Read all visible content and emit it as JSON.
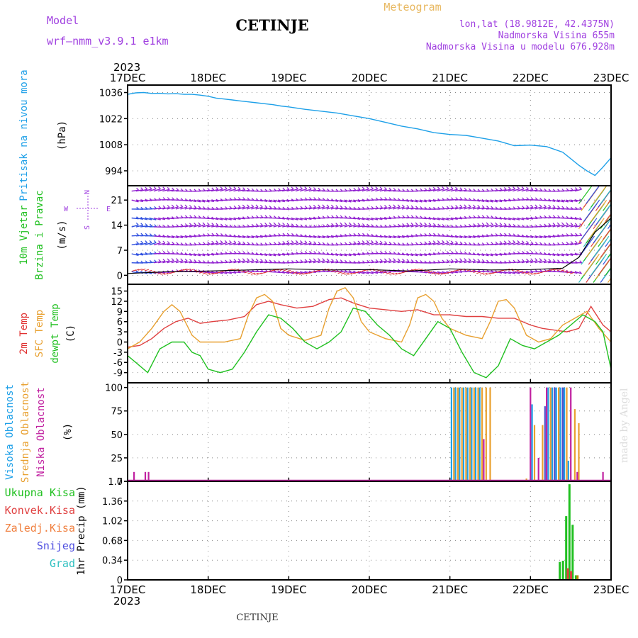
{
  "header": {
    "model_label": "Model",
    "model_name": "wrf—nmm_v3.9.1  e1km",
    "title": "CETINJE",
    "meteogram_label": "Meteogram",
    "coords": "lon,lat (18.9812E, 42.4375N)",
    "altitude": "Nadmorska Visina 655m",
    "model_altitude": "Nadmorska Visina u modelu 676.928m",
    "year_top": "2023",
    "year_bottom": "2023",
    "footer_station": "CETINJE",
    "credit": "made by Angel",
    "colors": {
      "model": "#a040e0",
      "meteogram": "#e8b860",
      "coords": "#a040e0"
    }
  },
  "time_axis": {
    "labels": [
      "17DEC",
      "18DEC",
      "19DEC",
      "20DEC",
      "21DEC",
      "22DEC",
      "23DEC"
    ]
  },
  "chart_data": [
    {
      "id": "pressure",
      "type": "line",
      "ylabel": [
        "Pritisak na nivou mora",
        "(hPa)"
      ],
      "ylabel_colors": [
        "#1ea0e8",
        "#000000"
      ],
      "yticks": [
        994,
        1008,
        1022,
        1036
      ],
      "ylim": [
        986,
        1040
      ],
      "series": [
        {
          "color": "#1ea0e8",
          "x": [
            0,
            0.1,
            0.2,
            0.3,
            0.4,
            0.5,
            0.6,
            0.7,
            0.8,
            0.9,
            1.0,
            1.1,
            1.2,
            1.3,
            1.4,
            1.5,
            1.6,
            1.7,
            1.8,
            1.9,
            2.0,
            2.2,
            2.4,
            2.6,
            2.8,
            3.0,
            3.2,
            3.4,
            3.6,
            3.8,
            4.0,
            4.2,
            4.4,
            4.6,
            4.8,
            5.0,
            5.2,
            5.4,
            5.6,
            5.7,
            5.8,
            5.9,
            6.0
          ],
          "y": [
            1035,
            1035.8,
            1036,
            1035.5,
            1035.6,
            1035.3,
            1035.4,
            1035,
            1035,
            1034.6,
            1034,
            1033,
            1032.5,
            1032,
            1031.5,
            1031,
            1030.5,
            1030,
            1029.5,
            1028.8,
            1028.3,
            1027,
            1026,
            1025,
            1023.5,
            1022,
            1020,
            1018,
            1016.5,
            1014.5,
            1013.5,
            1013,
            1011.5,
            1010,
            1007.5,
            1007.8,
            1007,
            1004,
            997,
            994,
            991.5,
            996,
            1001
          ]
        }
      ]
    },
    {
      "id": "wind",
      "type": "scatter",
      "ylabel": [
        "10m Vjetar",
        "Brzina i Pravac",
        "(m/s)"
      ],
      "ylabel_colors": [
        "#20c020",
        "#20c020",
        "#000000"
      ],
      "direction_legend": [
        "N",
        "W",
        "E",
        "S"
      ],
      "yticks": [
        0,
        7,
        14,
        21
      ],
      "ylim": [
        -2.5,
        25
      ],
      "barb_levels": [
        1,
        3.5,
        6,
        8.5,
        11,
        13.5,
        16,
        18.5,
        21,
        23.5
      ],
      "series": [
        {
          "name": "",
          "color": "#9020d0"
        },
        {
          "name": "",
          "color": "#3050e0"
        },
        {
          "name": "",
          "color": "#e03030"
        }
      ],
      "speed_line": {
        "color": "#000000",
        "x": [
          0,
          0.5,
          1.0,
          1.5,
          2.0,
          2.5,
          3.0,
          3.5,
          4.0,
          4.5,
          5.0,
          5.4,
          5.6,
          5.8,
          6.0
        ],
        "y": [
          0.5,
          1,
          1.2,
          1.5,
          1.8,
          1.5,
          1.6,
          1.2,
          1.8,
          1.5,
          1.6,
          2,
          5,
          12,
          16
        ]
      }
    },
    {
      "id": "temperature",
      "type": "line",
      "ylabel": [
        "2m Temp",
        "SFC Temp",
        "dewpt Temp",
        "(C)"
      ],
      "ylabel_colors": [
        "#e03030",
        "#e8a030",
        "#20c020",
        "#000000"
      ],
      "yticks": [
        -9,
        -6,
        -3,
        0,
        3,
        6,
        9,
        12,
        15
      ],
      "ylim": [
        -12,
        17
      ],
      "series": [
        {
          "name": "2m Temp",
          "color": "#e04040",
          "x": [
            0,
            0.15,
            0.3,
            0.45,
            0.6,
            0.75,
            0.9,
            1.05,
            1.25,
            1.45,
            1.6,
            1.75,
            1.9,
            2.1,
            2.3,
            2.5,
            2.65,
            2.8,
            3.0,
            3.2,
            3.4,
            3.6,
            3.8,
            4.0,
            4.2,
            4.4,
            4.6,
            4.8,
            5.0,
            5.15,
            5.3,
            5.45,
            5.6,
            5.75,
            5.9,
            6.0
          ],
          "y": [
            -1.5,
            -1,
            1,
            4,
            6,
            7,
            5.5,
            6,
            6.5,
            7.5,
            11,
            12,
            11,
            10,
            10.5,
            12.5,
            13,
            11.5,
            10,
            9.5,
            9,
            9.5,
            8,
            8,
            7.5,
            7.5,
            7,
            7,
            5,
            4,
            3.5,
            3,
            4,
            10.5,
            5,
            3
          ]
        },
        {
          "name": "SFC Temp",
          "color": "#e8a030",
          "x": [
            0,
            0.15,
            0.3,
            0.45,
            0.55,
            0.65,
            0.8,
            0.9,
            1.0,
            1.2,
            1.4,
            1.5,
            1.6,
            1.7,
            1.8,
            1.9,
            2.0,
            2.2,
            2.4,
            2.5,
            2.6,
            2.7,
            2.8,
            2.9,
            3.0,
            3.2,
            3.4,
            3.5,
            3.6,
            3.7,
            3.8,
            3.9,
            4.0,
            4.2,
            4.4,
            4.5,
            4.6,
            4.7,
            4.8,
            4.95,
            5.1,
            5.25,
            5.4,
            5.55,
            5.7,
            5.85,
            6.0
          ],
          "y": [
            -2,
            0,
            4,
            9,
            11,
            9,
            2,
            0,
            0,
            0,
            1,
            8,
            13,
            14,
            12,
            4,
            2,
            0.5,
            2,
            10,
            15,
            16,
            13,
            6,
            3,
            1,
            0,
            5,
            13,
            14,
            12,
            7,
            4,
            2,
            1,
            6,
            12,
            12.5,
            10,
            2,
            0,
            1,
            5,
            7,
            9,
            4,
            0
          ]
        },
        {
          "name": "dewpt Temp",
          "color": "#20c020",
          "x": [
            0,
            0.1,
            0.25,
            0.4,
            0.55,
            0.7,
            0.8,
            0.9,
            1.0,
            1.15,
            1.3,
            1.45,
            1.6,
            1.75,
            1.9,
            2.05,
            2.2,
            2.35,
            2.5,
            2.65,
            2.8,
            2.95,
            3.1,
            3.25,
            3.4,
            3.55,
            3.7,
            3.85,
            4.0,
            4.15,
            4.3,
            4.45,
            4.6,
            4.75,
            4.9,
            5.05,
            5.2,
            5.35,
            5.5,
            5.65,
            5.8,
            5.9,
            6.0
          ],
          "y": [
            -4,
            -6,
            -9,
            -2,
            0,
            0,
            -3,
            -4,
            -8,
            -9,
            -8,
            -3,
            3,
            8,
            7,
            4,
            0,
            -2,
            0,
            3,
            10,
            9,
            5,
            2,
            -2,
            -4,
            1,
            6,
            4,
            -3,
            -9,
            -10.5,
            -7,
            1,
            -1,
            -2,
            0,
            2,
            5,
            8,
            6,
            3,
            -8
          ]
        }
      ]
    },
    {
      "id": "clouds",
      "type": "bar",
      "ylabel": [
        "Visoka Oblacnost",
        "Srednja Oblacnost",
        "Niska Oblacnost",
        "(%)"
      ],
      "ylabel_colors": [
        "#1ea0e8",
        "#e8a030",
        "#c020a0",
        "#000000"
      ],
      "yticks": [
        0,
        25,
        50,
        75,
        100
      ],
      "ylim": [
        0,
        105
      ],
      "series": [
        {
          "name": "Visoka Oblacnost",
          "color": "#1ea0e8",
          "x": [
            4.02,
            4.07,
            4.12,
            4.17,
            4.22,
            4.27,
            4.32,
            4.37,
            5.02,
            5.22,
            5.27,
            5.32,
            5.37,
            5.42,
            5.47
          ],
          "values": [
            100,
            100,
            100,
            100,
            100,
            100,
            100,
            100,
            82,
            100,
            100,
            100,
            100,
            100,
            22
          ]
        },
        {
          "name": "Srednja Oblacnost",
          "color": "#e8a030",
          "x": [
            4.05,
            4.1,
            4.15,
            4.2,
            4.25,
            4.3,
            4.35,
            4.4,
            4.45,
            4.5,
            4.95,
            5.05,
            5.15,
            5.25,
            5.35,
            5.45,
            5.55,
            5.6
          ],
          "values": [
            100,
            100,
            100,
            100,
            100,
            100,
            100,
            100,
            100,
            100,
            3,
            60,
            60,
            100,
            100,
            100,
            77,
            62
          ]
        },
        {
          "name": "Niska Oblacnost",
          "color": "#c020a0",
          "x": [
            0.08,
            0.22,
            0.26,
            4.42,
            5.0,
            5.1,
            5.2,
            5.3,
            5.4,
            5.5,
            5.58,
            5.9
          ],
          "values": [
            10,
            10,
            10,
            45,
            100,
            25,
            100,
            100,
            100,
            100,
            10,
            10
          ]
        },
        {
          "name": "",
          "color": "#5050c8",
          "x": [
            5.0,
            5.18,
            5.3,
            5.4
          ],
          "values": [
            2,
            80,
            100,
            100
          ]
        }
      ]
    },
    {
      "id": "precip",
      "type": "bar",
      "ylabel": [
        "1hr Precip (mm)"
      ],
      "ylabel_colors": [
        "#000000"
      ],
      "yticks": [
        0,
        0.34,
        0.68,
        1.02,
        1.36,
        1.7
      ],
      "ylim": [
        0,
        1.7
      ],
      "legend": [
        {
          "label": "Ukupna  Kisa",
          "color": "#20c020"
        },
        {
          "label": "Konvek.Kisa",
          "color": "#e04040"
        },
        {
          "label": "Zaledj.Kisa",
          "color": "#f08040"
        },
        {
          "label": "Snijeg",
          "color": "#5050e0"
        },
        {
          "label": "Grad",
          "color": "#30c0c0"
        }
      ],
      "series": [
        {
          "name": "Ukupna  Kisa",
          "color": "#20c020",
          "x": [
            5.36,
            5.4,
            5.44,
            5.48,
            5.52,
            5.56
          ],
          "values": [
            0.31,
            0.33,
            1.1,
            1.65,
            0.95,
            0.08
          ]
        },
        {
          "name": "Konvek.Kisa",
          "color": "#e04040",
          "x": [
            5.46,
            5.5
          ],
          "values": [
            0.2,
            0.15
          ]
        },
        {
          "name": "Zaledj.Kisa",
          "color": "#b8860b",
          "x": [
            5.58
          ],
          "values": [
            0.08
          ]
        }
      ]
    }
  ]
}
